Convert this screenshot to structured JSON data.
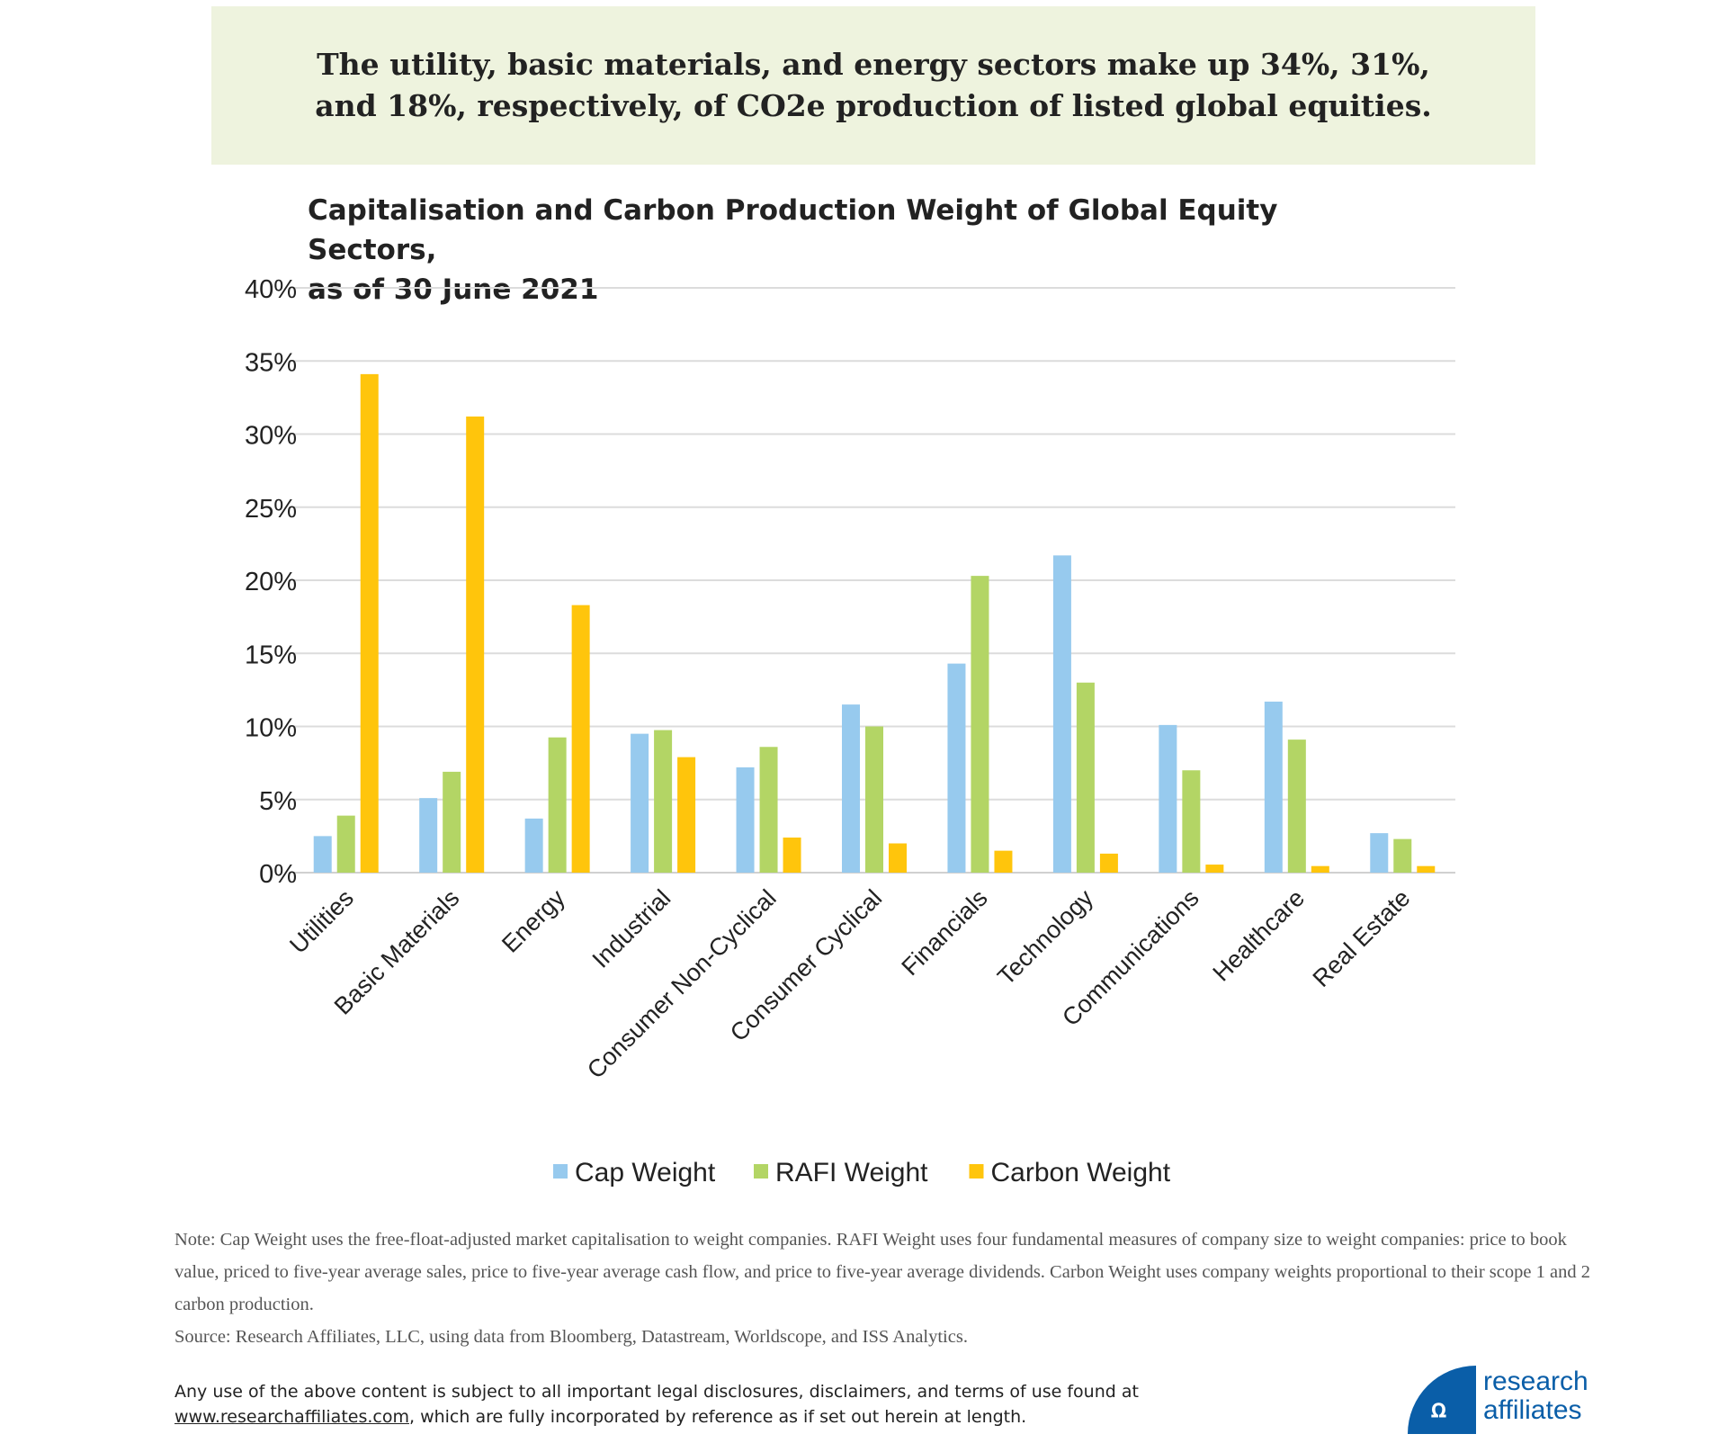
{
  "headline": "The utility, basic materials, and energy sectors make up 34%, 31%, and 18%, respectively, of CO2e production of listed global equities.",
  "chart_data": {
    "type": "bar",
    "title": "Capitalisation and Carbon Production Weight of Global Equity Sectors, as of 30 June 2021",
    "title_lines": [
      "Capitalisation and Carbon Production Weight of Global Equity Sectors,",
      "as of 30 June 2021"
    ],
    "categories": [
      "Utilities",
      "Basic Materials",
      "Energy",
      "Industrial",
      "Consumer Non-Cyclical",
      "Consumer Cyclical",
      "Financials",
      "Technology",
      "Communications",
      "Healthcare",
      "Real Estate"
    ],
    "series": [
      {
        "name": "Cap Weight",
        "color": "#97caee",
        "values": [
          2.5,
          5.1,
          3.7,
          9.5,
          7.2,
          11.5,
          14.3,
          21.7,
          10.1,
          11.7,
          2.7
        ]
      },
      {
        "name": "RAFI Weight",
        "color": "#b3d565",
        "values": [
          3.9,
          6.9,
          9.25,
          9.75,
          8.6,
          10.0,
          20.3,
          13.0,
          7.0,
          9.1,
          2.3
        ]
      },
      {
        "name": "Carbon Weight",
        "color": "#ffc50c",
        "values": [
          34.1,
          31.2,
          18.3,
          7.9,
          2.4,
          2.0,
          1.5,
          1.3,
          0.55,
          0.45,
          0.45
        ]
      }
    ],
    "ylim": [
      0,
      40
    ],
    "yticks": [
      "0%",
      "5%",
      "10%",
      "15%",
      "20%",
      "25%",
      "30%",
      "35%",
      "40%"
    ],
    "grid": true,
    "legend_position": "bottom"
  },
  "notes": {
    "note": "Note: Cap Weight uses the free-float-adjusted market capitalisation to weight companies. RAFI Weight uses four fundamental measures of company size to weight companies: price to book value, priced to five-year average sales, price to five-year average cash flow, and price to five-year average dividends. Carbon Weight uses company weights proportional to their scope 1 and 2 carbon production.",
    "source": "Source: Research Affiliates, LLC, using data from Bloomberg, Datastream, Worldscope, and ISS Analytics."
  },
  "disclaimer": {
    "line1": "Any use of the above content is subject to all important legal disclosures, disclaimers, and terms of use found at",
    "link": "www.researchaffiliates.com",
    "line2_rest": ", which are fully incorporated by reference as if set out herein at length."
  },
  "logo": {
    "text": "research affiliates",
    "line1": "research",
    "line2": "affiliates",
    "color": "#0a5ea8"
  }
}
